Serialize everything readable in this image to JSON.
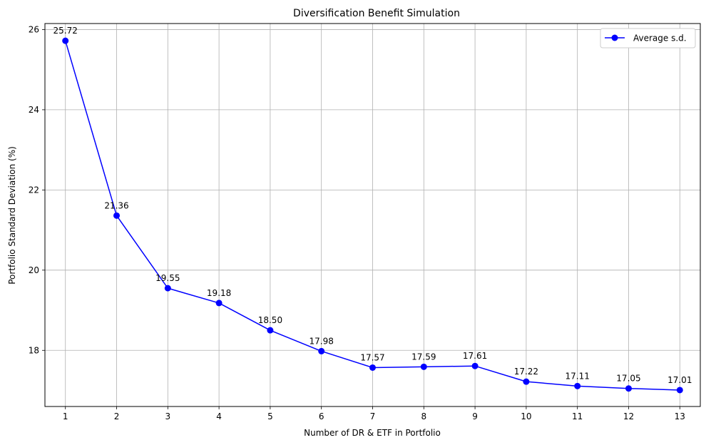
{
  "chart_data": {
    "type": "line",
    "title": "Diversification Benefit Simulation",
    "xlabel": "Number of DR & ETF in Portfolio",
    "ylabel": "Portfolio Standard Deviation (%)",
    "x": [
      1,
      2,
      3,
      4,
      5,
      6,
      7,
      8,
      9,
      10,
      11,
      12,
      13
    ],
    "xticks": [
      "1",
      "2",
      "3",
      "4",
      "5",
      "6",
      "7",
      "8",
      "9",
      "10",
      "11",
      "12",
      "13"
    ],
    "yticks": [
      "18",
      "20",
      "22",
      "24",
      "26"
    ],
    "ytick_values": [
      18,
      20,
      22,
      24,
      26
    ],
    "xlim": [
      0.6,
      13.4
    ],
    "ylim": [
      16.6,
      26.15
    ],
    "grid": true,
    "legend_position": "upper right",
    "series": [
      {
        "name": "Average s.d.",
        "color": "#0000ff",
        "marker": "circle",
        "values": [
          25.72,
          21.36,
          19.55,
          19.18,
          18.5,
          17.98,
          17.57,
          17.59,
          17.61,
          17.22,
          17.11,
          17.05,
          17.01
        ],
        "labels": [
          "25.72",
          "21.36",
          "19.55",
          "19.18",
          "18.50",
          "17.98",
          "17.57",
          "17.59",
          "17.61",
          "17.22",
          "17.11",
          "17.05",
          "17.01"
        ]
      }
    ]
  }
}
